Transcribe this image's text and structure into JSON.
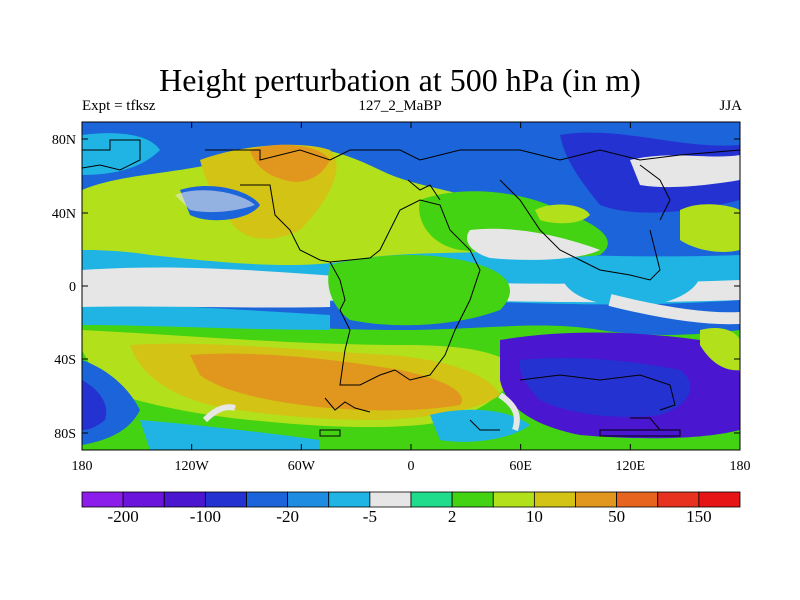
{
  "title": "Height perturbation at 500 hPa (in m)",
  "left_label": "Expt = tfksz",
  "center_label": "127_2_MaBP",
  "right_label": "JJA",
  "y_ticks": [
    "80N",
    "40N",
    "0",
    "40S",
    "80S"
  ],
  "x_ticks": [
    "180",
    "120W",
    "60W",
    "0",
    "60E",
    "120E",
    "180"
  ],
  "colorbar": {
    "colors": [
      "#8c1eeb",
      "#6a14dc",
      "#4a16cf",
      "#2432d2",
      "#1b64d9",
      "#1e8ce1",
      "#1fb4e4",
      "#e6e6e6",
      "#1edc8c",
      "#43d313",
      "#b2e11b",
      "#d2c314",
      "#e1961e",
      "#e6641e",
      "#e6321e",
      "#e61414"
    ],
    "labels": [
      "-200",
      "-100",
      "-20",
      "-5",
      "2",
      "10",
      "50",
      "150"
    ]
  }
}
